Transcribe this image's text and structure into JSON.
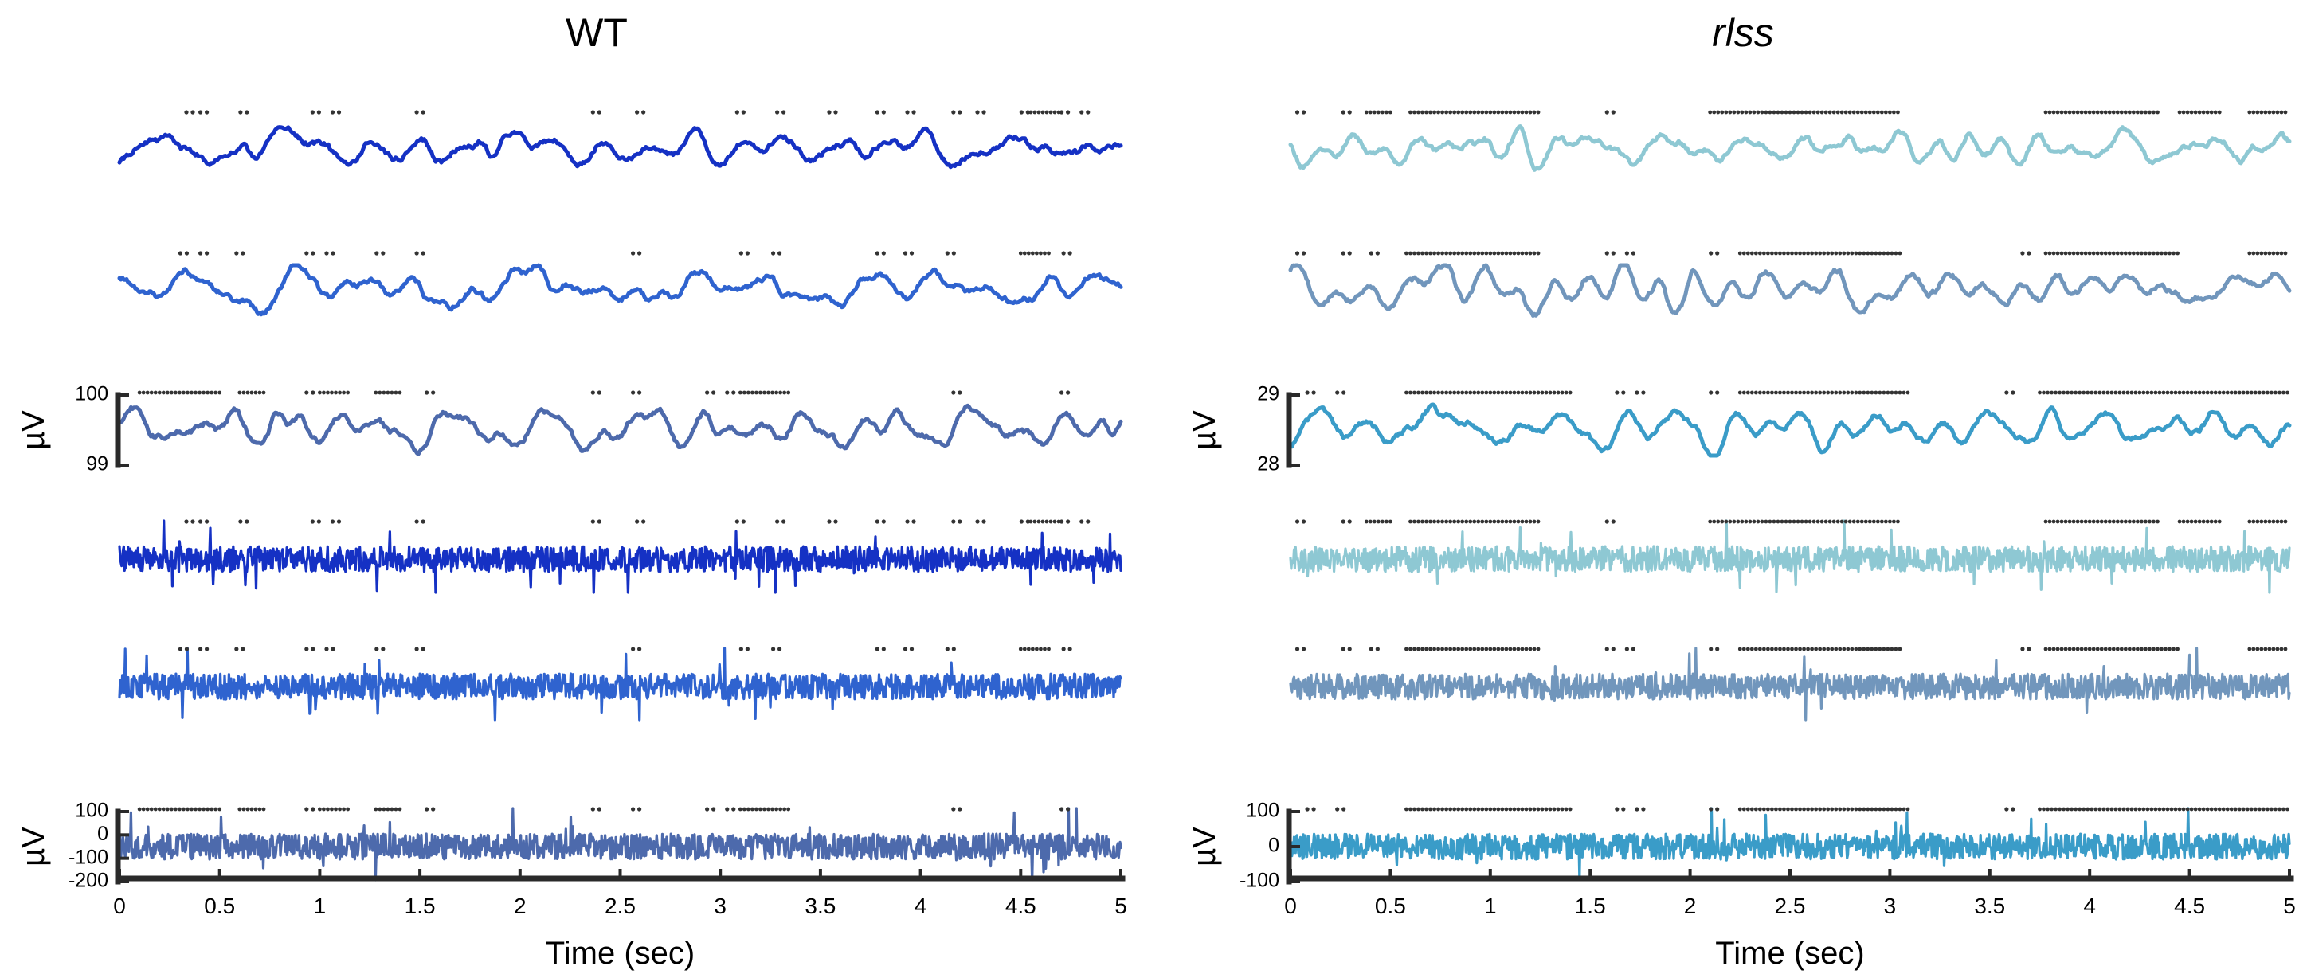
{
  "chart_data": [
    {
      "type": "line",
      "title": "WT",
      "title_italic": false,
      "xlabel": "Time (sec)",
      "x_ticks": [
        "0",
        "0.5",
        "1",
        "1.5",
        "2",
        "2.5",
        "3",
        "3.5",
        "4",
        "4.5",
        "5"
      ],
      "xlim": [
        0,
        5
      ],
      "series": [
        {
          "color": "#1531c4",
          "kind": "slow",
          "seed": 11,
          "events": [
            0.35,
            0.42,
            0.62,
            0.98,
            1.08,
            1.5,
            2.38,
            2.6,
            3.1,
            3.3,
            3.56,
            3.8,
            3.95,
            4.18,
            4.3,
            4.52,
            4.72,
            4.82
          ],
          "event_runs": [
            [
              4.55,
              4.7
            ]
          ]
        },
        {
          "color": "#2f63cf",
          "kind": "slow",
          "seed": 12,
          "events": [
            0.32,
            0.42,
            0.6,
            0.95,
            1.05,
            1.3,
            1.5,
            2.58,
            3.12,
            3.28,
            3.8,
            3.94,
            4.15,
            4.73
          ],
          "event_runs": [
            [
              4.5,
              4.65
            ]
          ]
        },
        {
          "color": "#4d6aac",
          "kind": "slow",
          "seed": 13,
          "events": [
            0.95,
            1.55,
            2.38,
            2.58,
            2.95,
            3.05,
            4.18,
            4.72
          ],
          "event_runs": [
            [
              0.1,
              0.5
            ],
            [
              0.6,
              0.72
            ],
            [
              1.0,
              1.15
            ],
            [
              1.28,
              1.4
            ],
            [
              3.1,
              3.35
            ]
          ],
          "scale": {
            "ylabel": "µV",
            "ticks": [
              "100",
              "99"
            ]
          }
        },
        {
          "color": "#1531c4",
          "kind": "noise",
          "seed": 21,
          "events": [
            0.35,
            0.42,
            0.62,
            0.98,
            1.08,
            1.5,
            2.38,
            2.6,
            3.1,
            3.3,
            3.56,
            3.8,
            3.95,
            4.18,
            4.3,
            4.52,
            4.72,
            4.82
          ],
          "event_runs": [
            [
              4.55,
              4.7
            ]
          ]
        },
        {
          "color": "#2f63cf",
          "kind": "noise",
          "seed": 22,
          "events": [
            0.32,
            0.42,
            0.6,
            0.95,
            1.05,
            1.3,
            1.5,
            2.58,
            3.12,
            3.28,
            3.8,
            3.94,
            4.15,
            4.73
          ],
          "event_runs": [
            [
              4.5,
              4.65
            ]
          ]
        },
        {
          "color": "#4d6aac",
          "kind": "noise",
          "seed": 23,
          "events": [
            0.95,
            1.55,
            2.38,
            2.58,
            2.95,
            3.05,
            4.18,
            4.72
          ],
          "event_runs": [
            [
              0.1,
              0.5
            ],
            [
              0.6,
              0.72
            ],
            [
              1.0,
              1.15
            ],
            [
              1.28,
              1.4
            ],
            [
              3.1,
              3.35
            ]
          ],
          "scale": {
            "ylabel": "µV",
            "ticks": [
              "100",
              "0",
              "-100",
              "-200"
            ]
          }
        }
      ]
    },
    {
      "type": "line",
      "title": "rlss",
      "title_italic": true,
      "xlabel": "Time (sec)",
      "x_ticks": [
        "0",
        "0.5",
        "1",
        "1.5",
        "2",
        "2.5",
        "3",
        "3.5",
        "4",
        "4.5",
        "5"
      ],
      "xlim": [
        0,
        5
      ],
      "series": [
        {
          "color": "#8ec8d3",
          "kind": "slow",
          "seed": 31,
          "events": [
            0.05,
            0.28,
            1.6
          ],
          "event_runs": [
            [
              0.38,
              0.5
            ],
            [
              0.6,
              1.25
            ],
            [
              2.1,
              3.05
            ],
            [
              3.78,
              4.35
            ],
            [
              4.45,
              4.65
            ],
            [
              4.8,
              4.98
            ]
          ]
        },
        {
          "color": "#7196bc",
          "kind": "slow",
          "seed": 32,
          "events": [
            0.05,
            0.28,
            0.42,
            1.6,
            1.7,
            2.12,
            3.68
          ],
          "event_runs": [
            [
              0.58,
              1.25
            ],
            [
              2.25,
              3.05
            ],
            [
              3.78,
              4.45
            ],
            [
              4.8,
              4.98
            ]
          ]
        },
        {
          "color": "#3a9cc8",
          "kind": "slow",
          "seed": 33,
          "events": [
            0.1,
            0.25,
            1.65,
            1.75,
            2.12,
            3.6
          ],
          "event_runs": [
            [
              0.58,
              1.4
            ],
            [
              2.25,
              3.1
            ],
            [
              3.75,
              5.0
            ]
          ],
          "scale": {
            "ylabel": "µV",
            "ticks": [
              "29",
              "28"
            ]
          }
        },
        {
          "color": "#8ec8d3",
          "kind": "noise",
          "seed": 41,
          "events": [
            0.05,
            0.28,
            1.6
          ],
          "event_runs": [
            [
              0.38,
              0.5
            ],
            [
              0.6,
              1.25
            ],
            [
              2.1,
              3.05
            ],
            [
              3.78,
              4.35
            ],
            [
              4.45,
              4.65
            ],
            [
              4.8,
              4.98
            ]
          ]
        },
        {
          "color": "#7196bc",
          "kind": "noise",
          "seed": 42,
          "events": [
            0.05,
            0.28,
            0.42,
            1.6,
            1.7,
            2.12,
            3.68
          ],
          "event_runs": [
            [
              0.58,
              1.25
            ],
            [
              2.25,
              3.05
            ],
            [
              3.78,
              4.45
            ],
            [
              4.8,
              4.98
            ]
          ]
        },
        {
          "color": "#3a9cc8",
          "kind": "noise",
          "seed": 43,
          "events": [
            0.1,
            0.25,
            1.65,
            1.75,
            2.12,
            3.6
          ],
          "event_runs": [
            [
              0.58,
              1.4
            ],
            [
              2.25,
              3.1
            ],
            [
              3.75,
              5.0
            ]
          ],
          "scale": {
            "ylabel": "µV",
            "ticks": [
              "100",
              "0",
              "-100"
            ]
          }
        }
      ]
    }
  ]
}
